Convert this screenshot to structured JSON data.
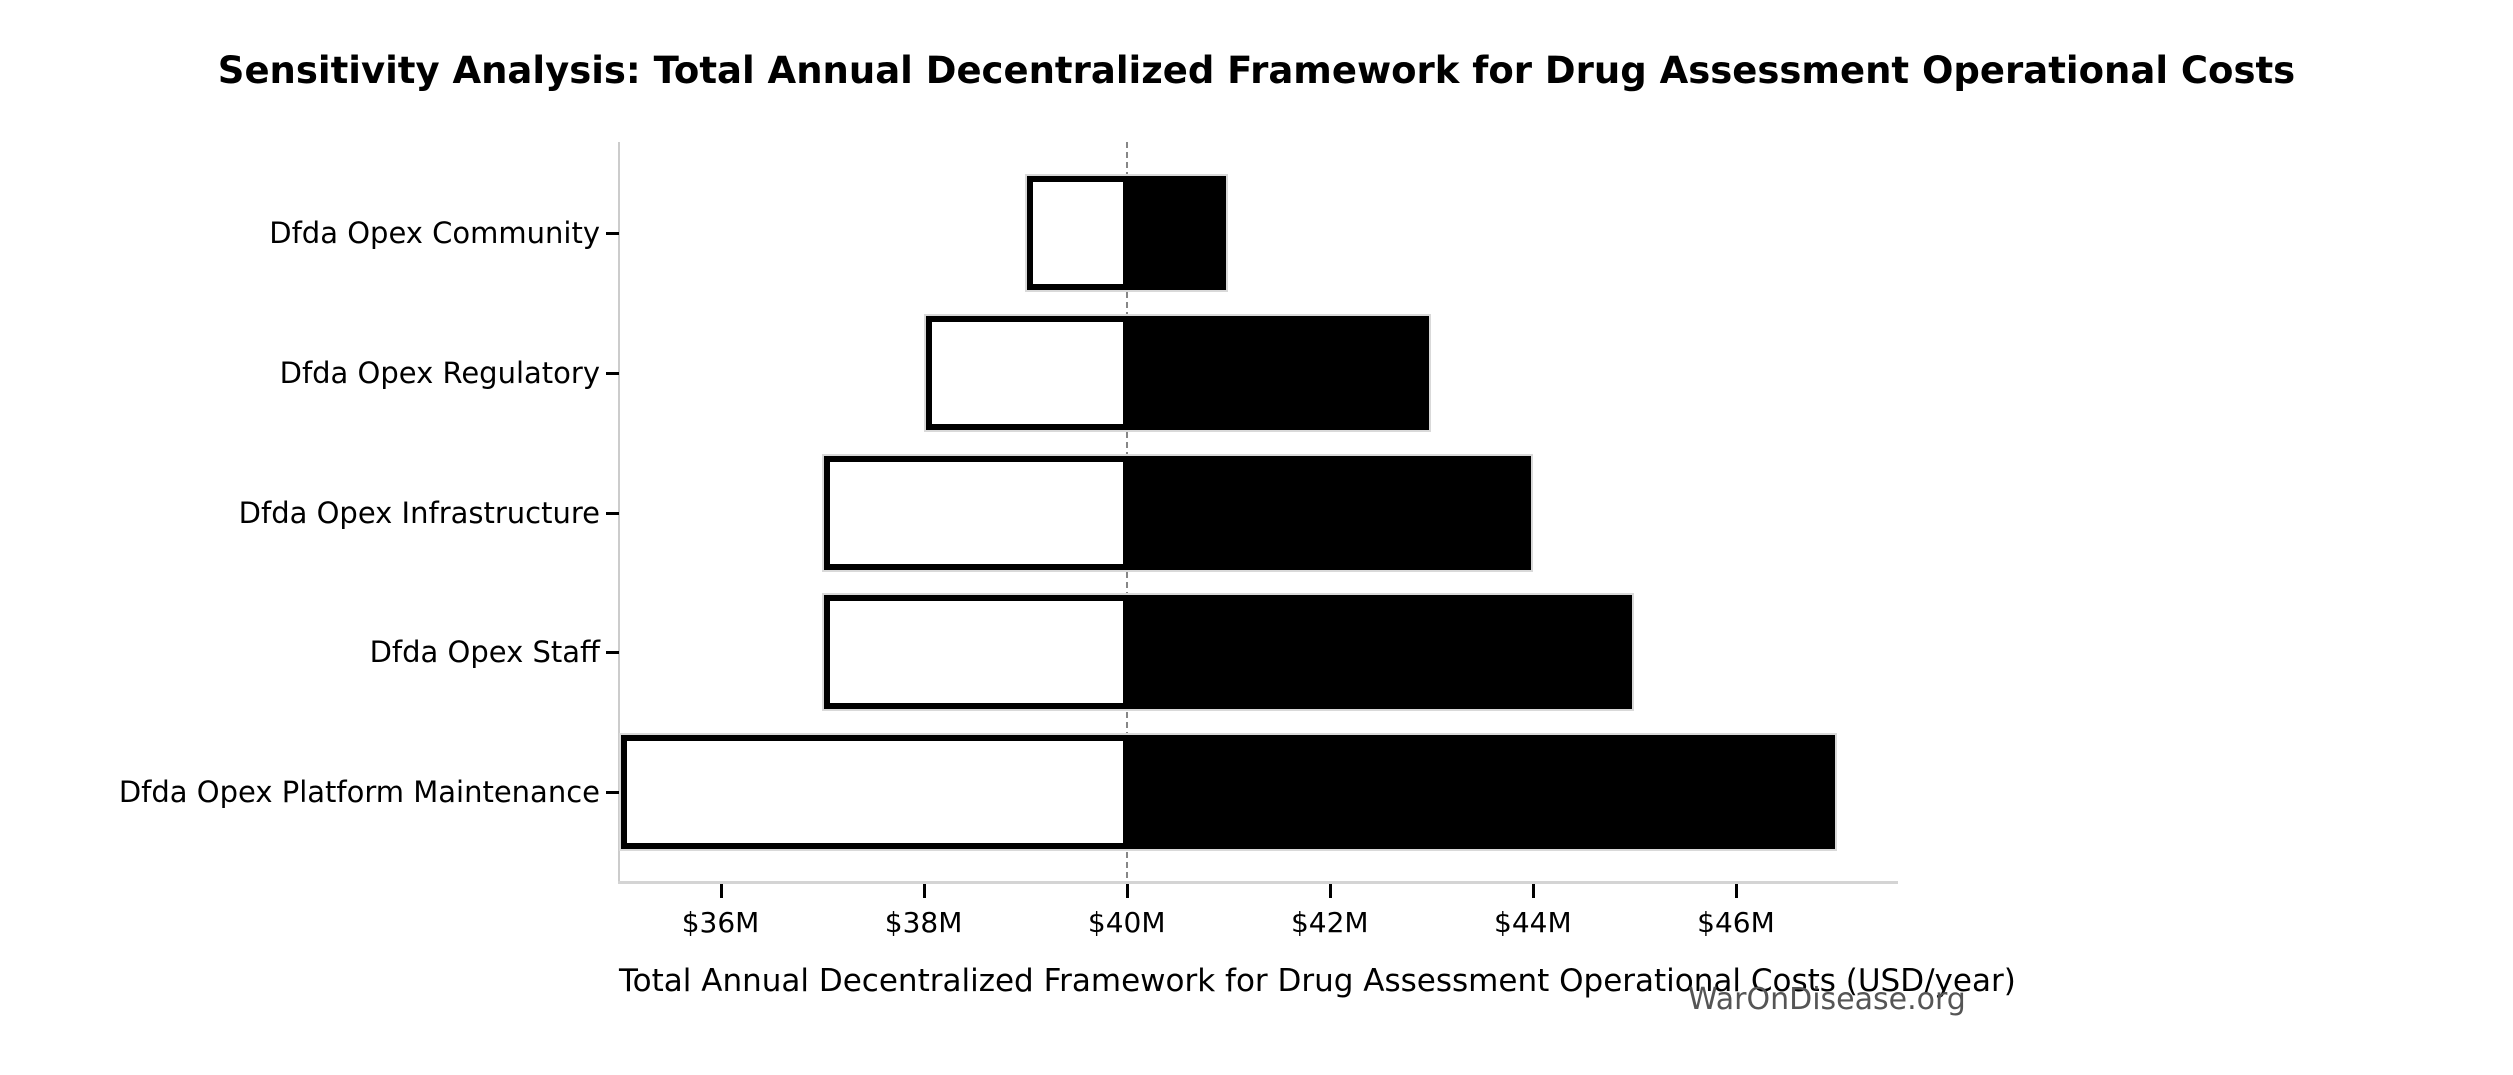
{
  "chart_data": {
    "type": "bar",
    "variant": "tornado-sensitivity",
    "title": "Sensitivity Analysis: Total Annual Decentralized Framework for Drug Assessment Operational Costs",
    "xlabel": "Total Annual Decentralized Framework for Drug Assessment Operational Costs (USD/year)",
    "unit": "USD millions per year",
    "baseline_value": 40,
    "baseline_line_style": "dashed",
    "xlim": [
      35,
      47.6
    ],
    "grid": false,
    "legend": "none",
    "x_ticks": [
      {
        "value": 36,
        "label": "$36M"
      },
      {
        "value": 38,
        "label": "$38M"
      },
      {
        "value": 40,
        "label": "$40M"
      },
      {
        "value": 42,
        "label": "$42M"
      },
      {
        "value": 44,
        "label": "$44M"
      },
      {
        "value": 46,
        "label": "$46M"
      }
    ],
    "categories": [
      {
        "label": "Dfda Opex Community",
        "low": 39,
        "high": 41
      },
      {
        "label": "Dfda Opex Regulatory",
        "low": 38,
        "high": 43
      },
      {
        "label": "Dfda Opex Infrastructure",
        "low": 37,
        "high": 44
      },
      {
        "label": "Dfda Opex Staff",
        "low": 37,
        "high": 45
      },
      {
        "label": "Dfda Opex Platform Maintenance",
        "low": 35,
        "high": 47,
        "low_clipped_at_axis": true
      }
    ],
    "watermark": "WarOnDisease.org",
    "colors": {
      "background": "#ffffff",
      "low_bar_fill": "#ffffff",
      "low_bar_edge": "#000000",
      "high_bar_fill": "#000000",
      "high_bar_edge": "#d9d9d9",
      "baseline_line": "#878787",
      "spine": "#cccccc",
      "tick": "#000000",
      "text": "#000000",
      "watermark": "#555555"
    }
  }
}
